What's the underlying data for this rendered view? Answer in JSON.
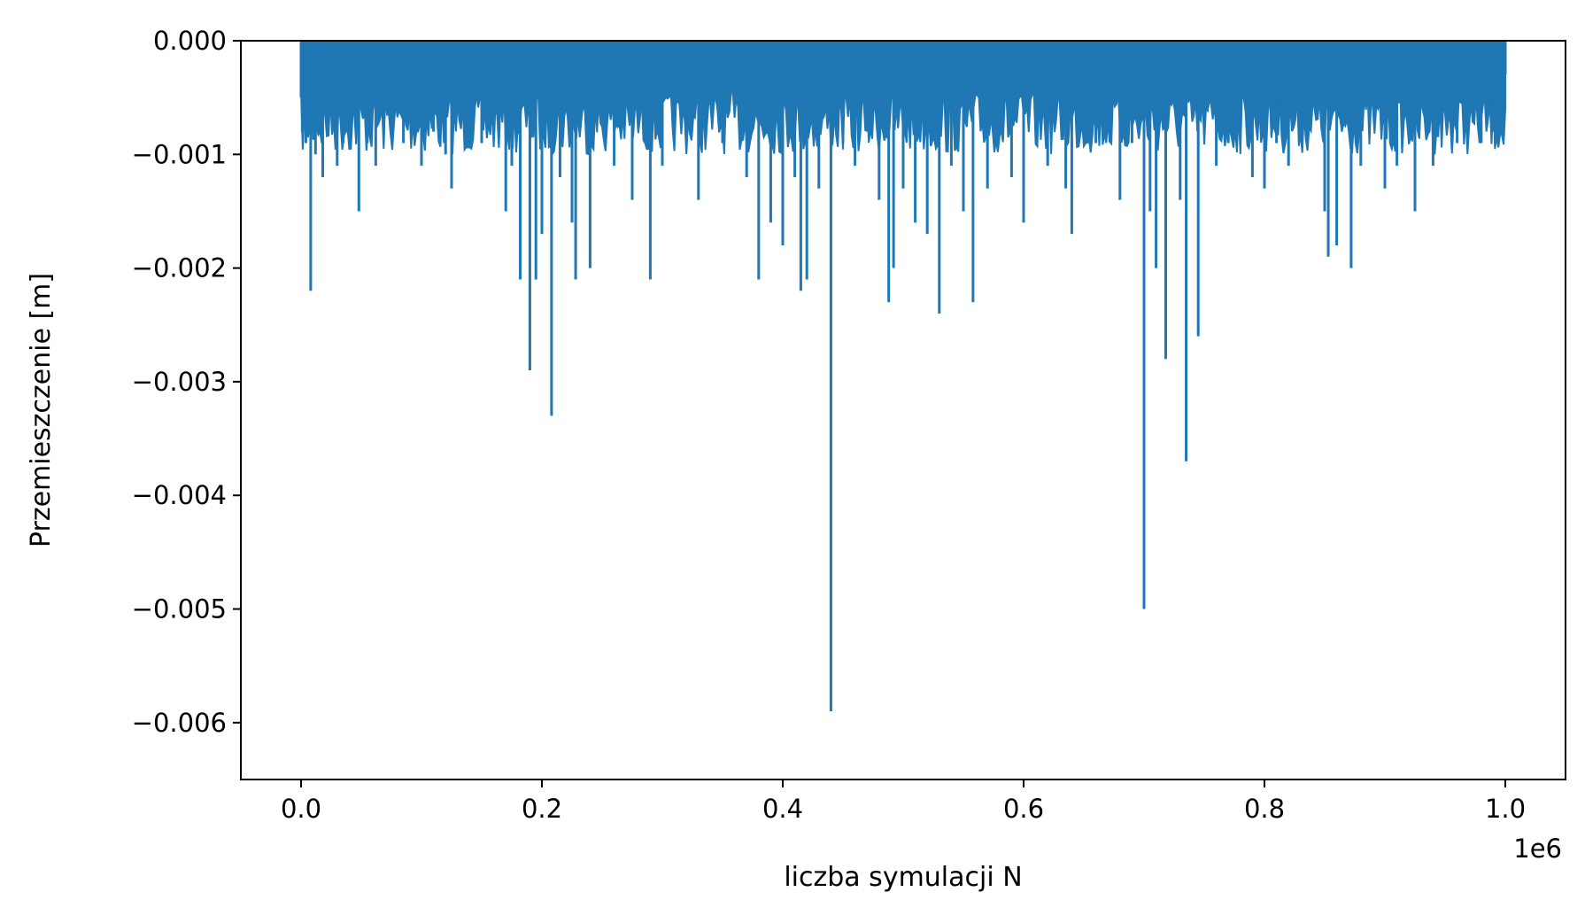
{
  "chart_data": {
    "type": "line",
    "title": "",
    "xlabel": "liczba symulacji N",
    "ylabel": "Przemieszczenie [m]",
    "x_offset_label": "1e6",
    "xlim": [
      -0.05,
      1.05
    ],
    "ylim": [
      -0.0065,
      0.0
    ],
    "xticks": [
      0.0,
      0.2,
      0.4,
      0.6,
      0.8,
      1.0
    ],
    "xtick_labels": [
      "0.0",
      "0.2",
      "0.4",
      "0.6",
      "0.8",
      "1.0"
    ],
    "yticks": [
      0.0,
      -0.001,
      -0.002,
      -0.003,
      -0.004,
      -0.005,
      -0.006
    ],
    "ytick_labels": [
      "0.000",
      "−0.001",
      "−0.002",
      "−0.003",
      "−0.004",
      "−0.005",
      "−0.006"
    ],
    "x_scale_note": "x values in units of 1e6",
    "grid": false,
    "line_color": "#1f77b4",
    "series": [
      {
        "x": [
          0.0,
          0.001,
          0.004,
          0.008,
          0.012,
          0.018,
          0.022,
          0.03,
          0.035,
          0.04,
          0.048,
          0.055,
          0.062,
          0.075,
          0.085,
          0.1,
          0.11,
          0.12,
          0.125,
          0.14,
          0.15,
          0.16,
          0.17,
          0.175,
          0.182,
          0.19,
          0.195,
          0.2,
          0.208,
          0.215,
          0.225,
          0.228,
          0.24,
          0.26,
          0.275,
          0.29,
          0.3,
          0.32,
          0.33,
          0.35,
          0.37,
          0.38,
          0.39,
          0.4,
          0.41,
          0.415,
          0.42,
          0.43,
          0.44,
          0.45,
          0.46,
          0.47,
          0.48,
          0.488,
          0.492,
          0.5,
          0.51,
          0.52,
          0.53,
          0.54,
          0.55,
          0.558,
          0.57,
          0.59,
          0.6,
          0.62,
          0.635,
          0.64,
          0.66,
          0.68,
          0.69,
          0.7,
          0.705,
          0.71,
          0.718,
          0.73,
          0.735,
          0.745,
          0.76,
          0.77,
          0.79,
          0.8,
          0.81,
          0.82,
          0.83,
          0.85,
          0.853,
          0.86,
          0.872,
          0.88,
          0.9,
          0.91,
          0.925,
          0.94,
          0.96,
          0.98,
          0.99,
          1.0
        ],
        "y": [
          -0.0005,
          -0.0008,
          -0.0009,
          -0.0022,
          -0.001,
          -0.0012,
          -0.0008,
          -0.0011,
          -0.0009,
          -0.0006,
          -0.0015,
          -0.0009,
          -0.0011,
          -0.0007,
          -0.0009,
          -0.0011,
          -0.0008,
          -0.001,
          -0.0013,
          -0.0008,
          -0.0009,
          -0.0007,
          -0.0015,
          -0.0011,
          -0.0021,
          -0.0029,
          -0.0021,
          -0.0017,
          -0.0033,
          -0.0012,
          -0.0016,
          -0.0021,
          -0.002,
          -0.0011,
          -0.0014,
          -0.0021,
          -0.0011,
          -0.0008,
          -0.0014,
          -0.0009,
          -0.0012,
          -0.0021,
          -0.0016,
          -0.0018,
          -0.0012,
          -0.0022,
          -0.0021,
          -0.0013,
          -0.0059,
          -0.0009,
          -0.0011,
          -0.0008,
          -0.0014,
          -0.0023,
          -0.002,
          -0.0013,
          -0.0016,
          -0.0017,
          -0.0024,
          -0.0011,
          -0.0015,
          -0.0023,
          -0.0013,
          -0.0012,
          -0.0016,
          -0.0011,
          -0.0013,
          -0.0017,
          -0.0009,
          -0.0014,
          -0.0009,
          -0.005,
          -0.0015,
          -0.002,
          -0.0028,
          -0.0014,
          -0.0037,
          -0.0026,
          -0.0011,
          -0.0009,
          -0.0012,
          -0.0013,
          -0.0009,
          -0.0011,
          -0.0008,
          -0.0015,
          -0.0019,
          -0.0018,
          -0.002,
          -0.0011,
          -0.0013,
          -0.0011,
          -0.0015,
          -0.0011,
          -0.0009,
          -0.0009,
          -0.0008,
          -0.0003
        ]
      }
    ]
  }
}
